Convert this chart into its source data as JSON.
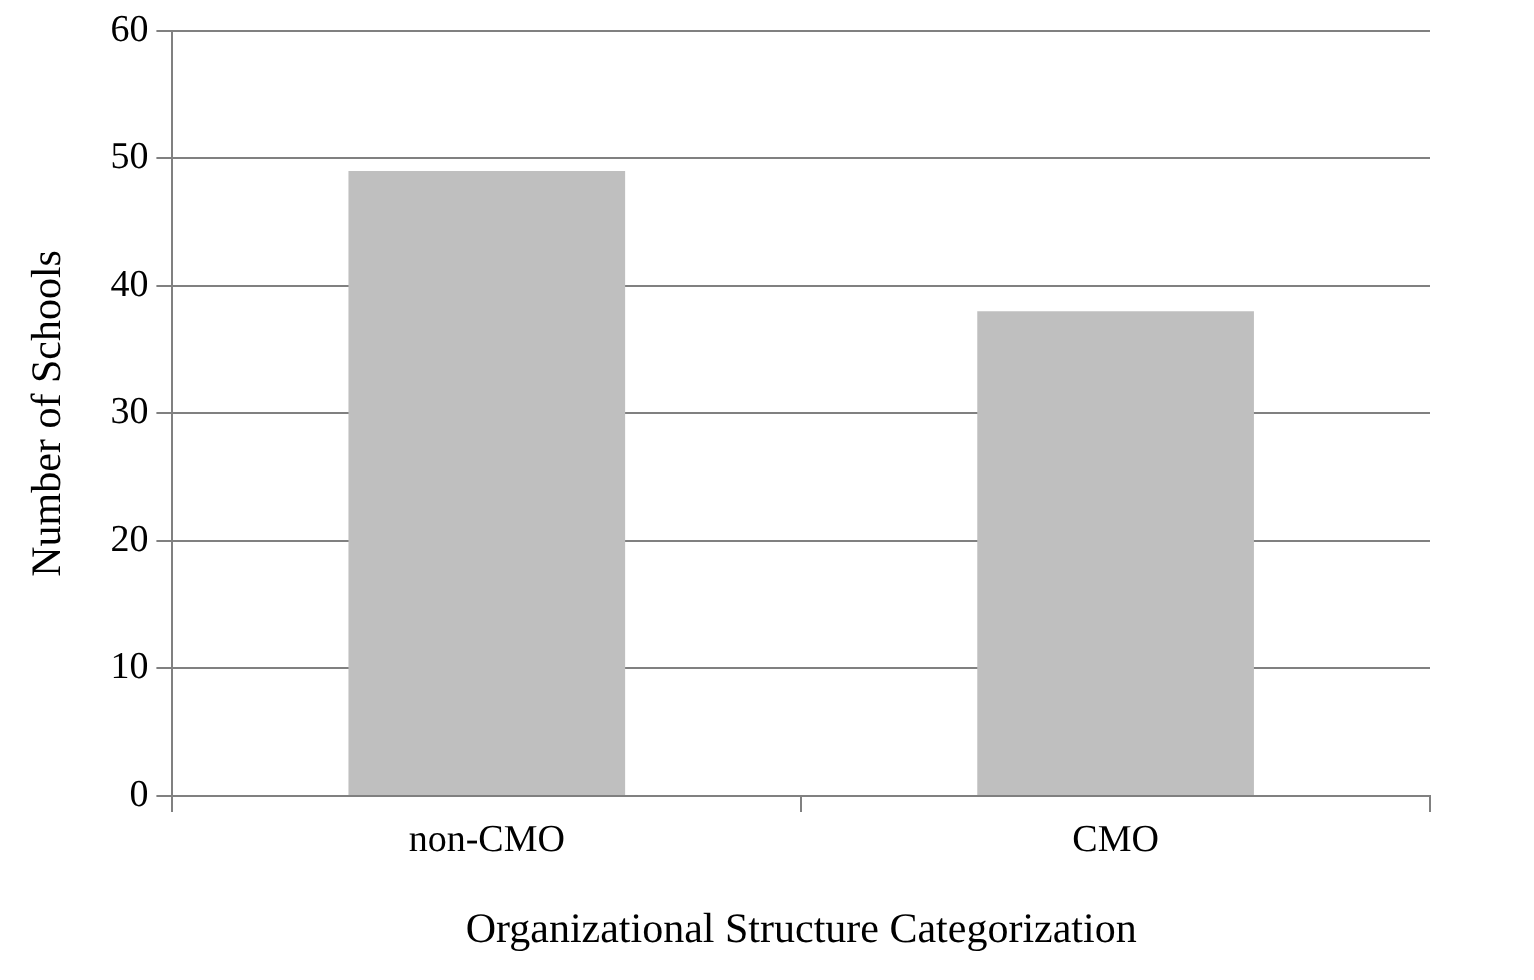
{
  "chart_data": {
    "type": "bar",
    "xlabel": "Organizational Structure Categorization",
    "ylabel": "Number of Schools",
    "categories": [
      "non-CMO",
      "CMO"
    ],
    "values": [
      49,
      38
    ],
    "color": "#bfbfbf",
    "ylim": [
      0,
      60
    ],
    "yticks": [
      0,
      10,
      20,
      30,
      40,
      50,
      60
    ],
    "grid": "y",
    "legend": false
  }
}
